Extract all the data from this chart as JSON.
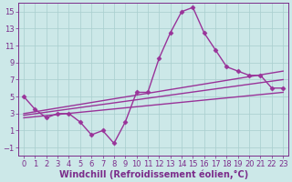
{
  "x": [
    0,
    1,
    2,
    3,
    4,
    5,
    6,
    7,
    8,
    9,
    10,
    11,
    12,
    13,
    14,
    15,
    16,
    17,
    18,
    19,
    20,
    21,
    22,
    23
  ],
  "y_main": [
    5,
    3.5,
    2.5,
    3.0,
    3.0,
    2.0,
    0.5,
    1.0,
    -0.5,
    2.0,
    5.5,
    5.5,
    9.5,
    12.5,
    15.0,
    15.5,
    12.5,
    10.5,
    8.5,
    8.0,
    7.5,
    7.5,
    6.0,
    6.0
  ],
  "line_color": "#993399",
  "bg_color": "#cce8e8",
  "grid_color": "#a8cece",
  "xlabel": "Windchill (Refroidissement éolien,°C)",
  "xlim": [
    -0.5,
    23.5
  ],
  "ylim": [
    -2,
    16
  ],
  "yticks": [
    -1,
    1,
    3,
    5,
    7,
    9,
    11,
    13,
    15
  ],
  "xticks": [
    0,
    1,
    2,
    3,
    4,
    5,
    6,
    7,
    8,
    9,
    10,
    11,
    12,
    13,
    14,
    15,
    16,
    17,
    18,
    19,
    20,
    21,
    22,
    23
  ],
  "marker": "D",
  "markersize": 2.5,
  "linewidth": 1.0,
  "font_color": "#7b2d8b",
  "tick_fontsize": 6.0,
  "xlabel_fontsize": 7.0,
  "trend1_x": [
    0,
    23
  ],
  "trend1_y": [
    3.0,
    8.0
  ],
  "trend2_x": [
    0,
    23
  ],
  "trend2_y": [
    2.8,
    7.0
  ],
  "trend3_x": [
    0,
    23
  ],
  "trend3_y": [
    2.5,
    5.5
  ]
}
